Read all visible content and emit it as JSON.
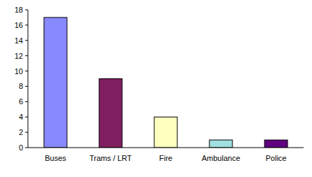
{
  "chart_data": {
    "type": "bar",
    "categories": [
      "Buses",
      "Trams / LRT",
      "Fire",
      "Ambulance",
      "Police"
    ],
    "values": [
      17,
      9,
      4,
      1,
      1
    ],
    "colors": [
      "#8888ff",
      "#7f1f5f",
      "#ffffc0",
      "#a0e0e0",
      "#600080"
    ],
    "ylim": [
      0,
      18
    ],
    "yticks": [
      0,
      2,
      4,
      6,
      8,
      10,
      12,
      14,
      16,
      18
    ],
    "grid": false
  }
}
